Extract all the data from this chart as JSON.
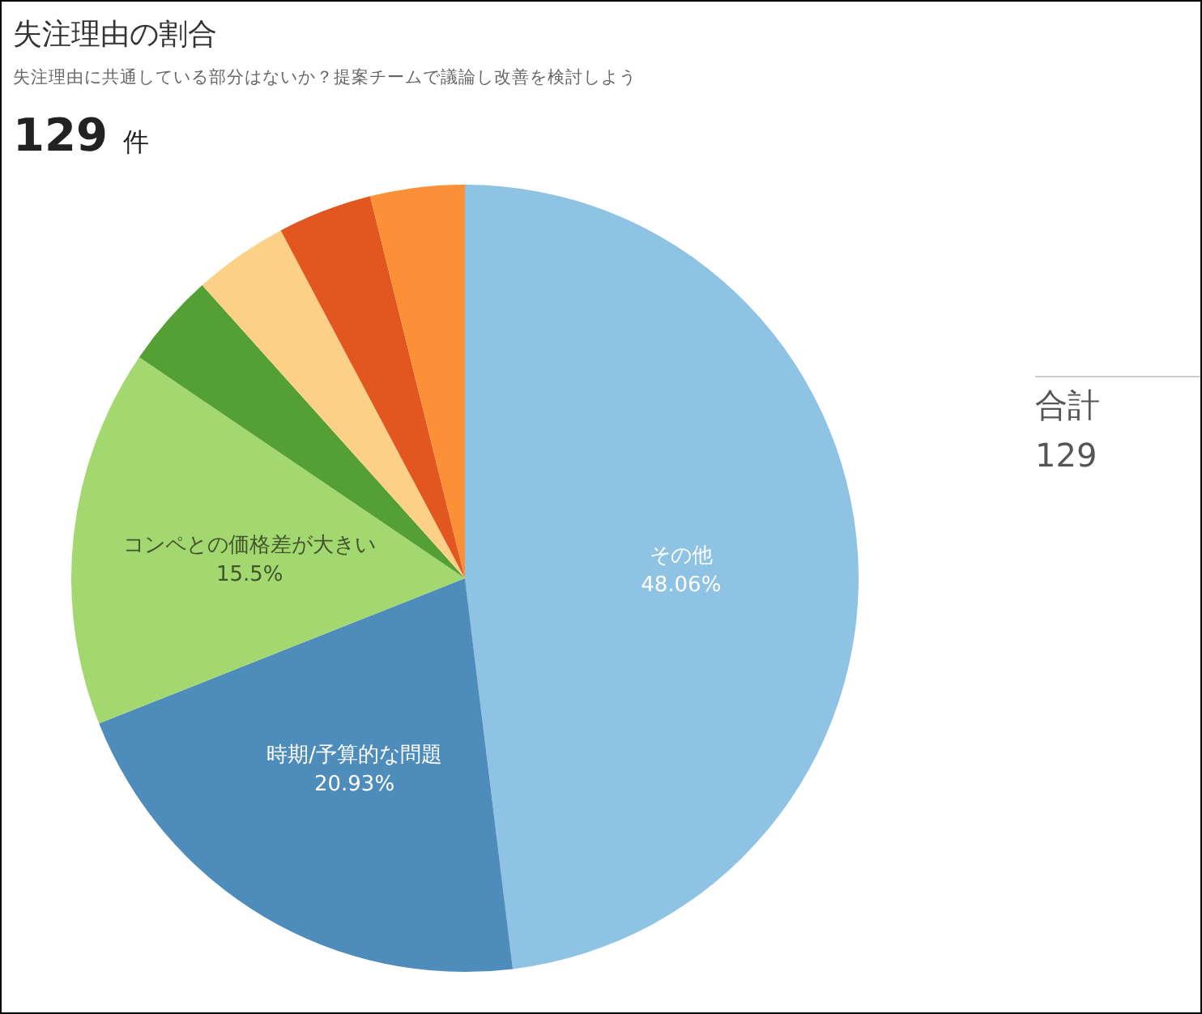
{
  "chart_data": {
    "type": "pie",
    "title": "失注理由の割合",
    "subtitle": "失注理由に共通している部分はないか？提案チームで議論し改善を検討しよう",
    "categories": [
      "その他",
      "時期/予算的な問題",
      "コンペとの価格差が大きい",
      null,
      null,
      null,
      null
    ],
    "values": [
      48.06,
      20.93,
      15.5,
      3.88,
      3.88,
      3.88,
      3.87
    ],
    "value_labels": [
      "48.06%",
      "20.93%",
      "15.5%",
      null,
      null,
      null,
      null
    ],
    "colors": [
      "#8fc3e4",
      "#4e8cbb",
      "#a3d870",
      "#55a035",
      "#fdd088",
      "#e2561f",
      "#fb9038"
    ],
    "annotations": [
      "129 件",
      "合計",
      "129"
    ],
    "legend": false
  }
}
